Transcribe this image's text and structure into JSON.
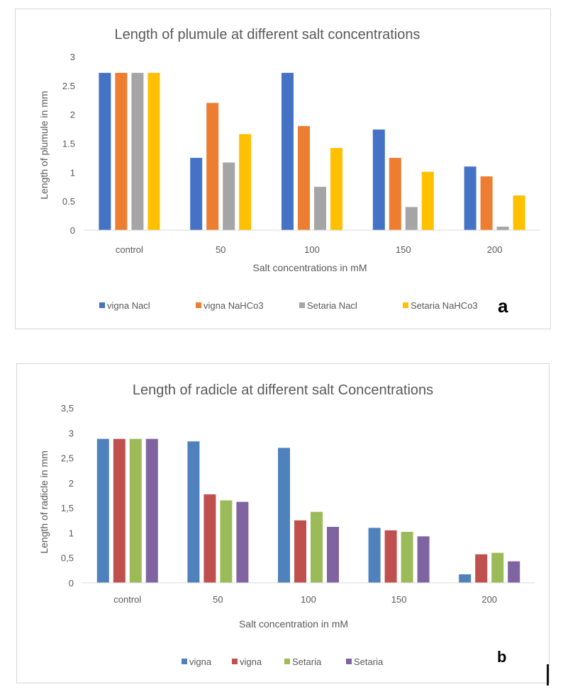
{
  "chart_data": [
    {
      "type": "bar",
      "title": "Length of plumule at different salt concentrations",
      "xlabel": "Salt concentrations in mM",
      "ylabel": "Length of plumule in mm",
      "categories": [
        "control",
        "50",
        "100",
        "150",
        "200"
      ],
      "ylim": [
        0,
        3
      ],
      "yticks": [
        0,
        0.5,
        1,
        1.5,
        2,
        2.5,
        3
      ],
      "ytick_labels": [
        "0",
        "0.5",
        "1",
        "1.5",
        "2",
        "2.5",
        "3"
      ],
      "grid": false,
      "legend_position": "bottom",
      "panel_label": "a",
      "series": [
        {
          "name": "vigna Nacl",
          "color": "#4472C4",
          "values": [
            2.72,
            1.25,
            2.72,
            1.74,
            1.1
          ]
        },
        {
          "name": "vigna NaHCo3",
          "color": "#ED7D31",
          "values": [
            2.72,
            2.2,
            1.8,
            1.25,
            0.93
          ]
        },
        {
          "name": "Setaria Nacl",
          "color": "#A5A5A5",
          "values": [
            2.72,
            1.17,
            0.75,
            0.4,
            0.06
          ]
        },
        {
          "name": "Setaria NaHCo3",
          "color": "#FFC000",
          "values": [
            2.72,
            1.66,
            1.42,
            1.01,
            0.6
          ]
        }
      ]
    },
    {
      "type": "bar",
      "title": "Length of radicle at different salt Concentrations",
      "xlabel": "Salt concentration in mM",
      "ylabel": "Length of radicle in mm",
      "categories": [
        "control",
        "50",
        "100",
        "150",
        "200"
      ],
      "ylim": [
        0,
        3.5
      ],
      "yticks": [
        0,
        0.5,
        1,
        1.5,
        2,
        2.5,
        3,
        3.5
      ],
      "ytick_labels": [
        "0",
        "0,5",
        "1",
        "1,5",
        "2",
        "2,5",
        "3",
        "3,5"
      ],
      "grid": false,
      "legend_position": "bottom",
      "panel_label": "b",
      "series": [
        {
          "name": "vigna",
          "color": "#4F81BD",
          "values": [
            2.88,
            2.83,
            2.7,
            1.1,
            0.17
          ]
        },
        {
          "name": "vigna",
          "color": "#C0504D",
          "values": [
            2.88,
            1.77,
            1.25,
            1.05,
            0.57
          ]
        },
        {
          "name": "Setaria",
          "color": "#9BBB59",
          "values": [
            2.88,
            1.65,
            1.42,
            1.02,
            0.6
          ]
        },
        {
          "name": "Setaria",
          "color": "#8064A2",
          "values": [
            2.88,
            1.62,
            1.12,
            0.93,
            0.43
          ]
        }
      ]
    }
  ]
}
